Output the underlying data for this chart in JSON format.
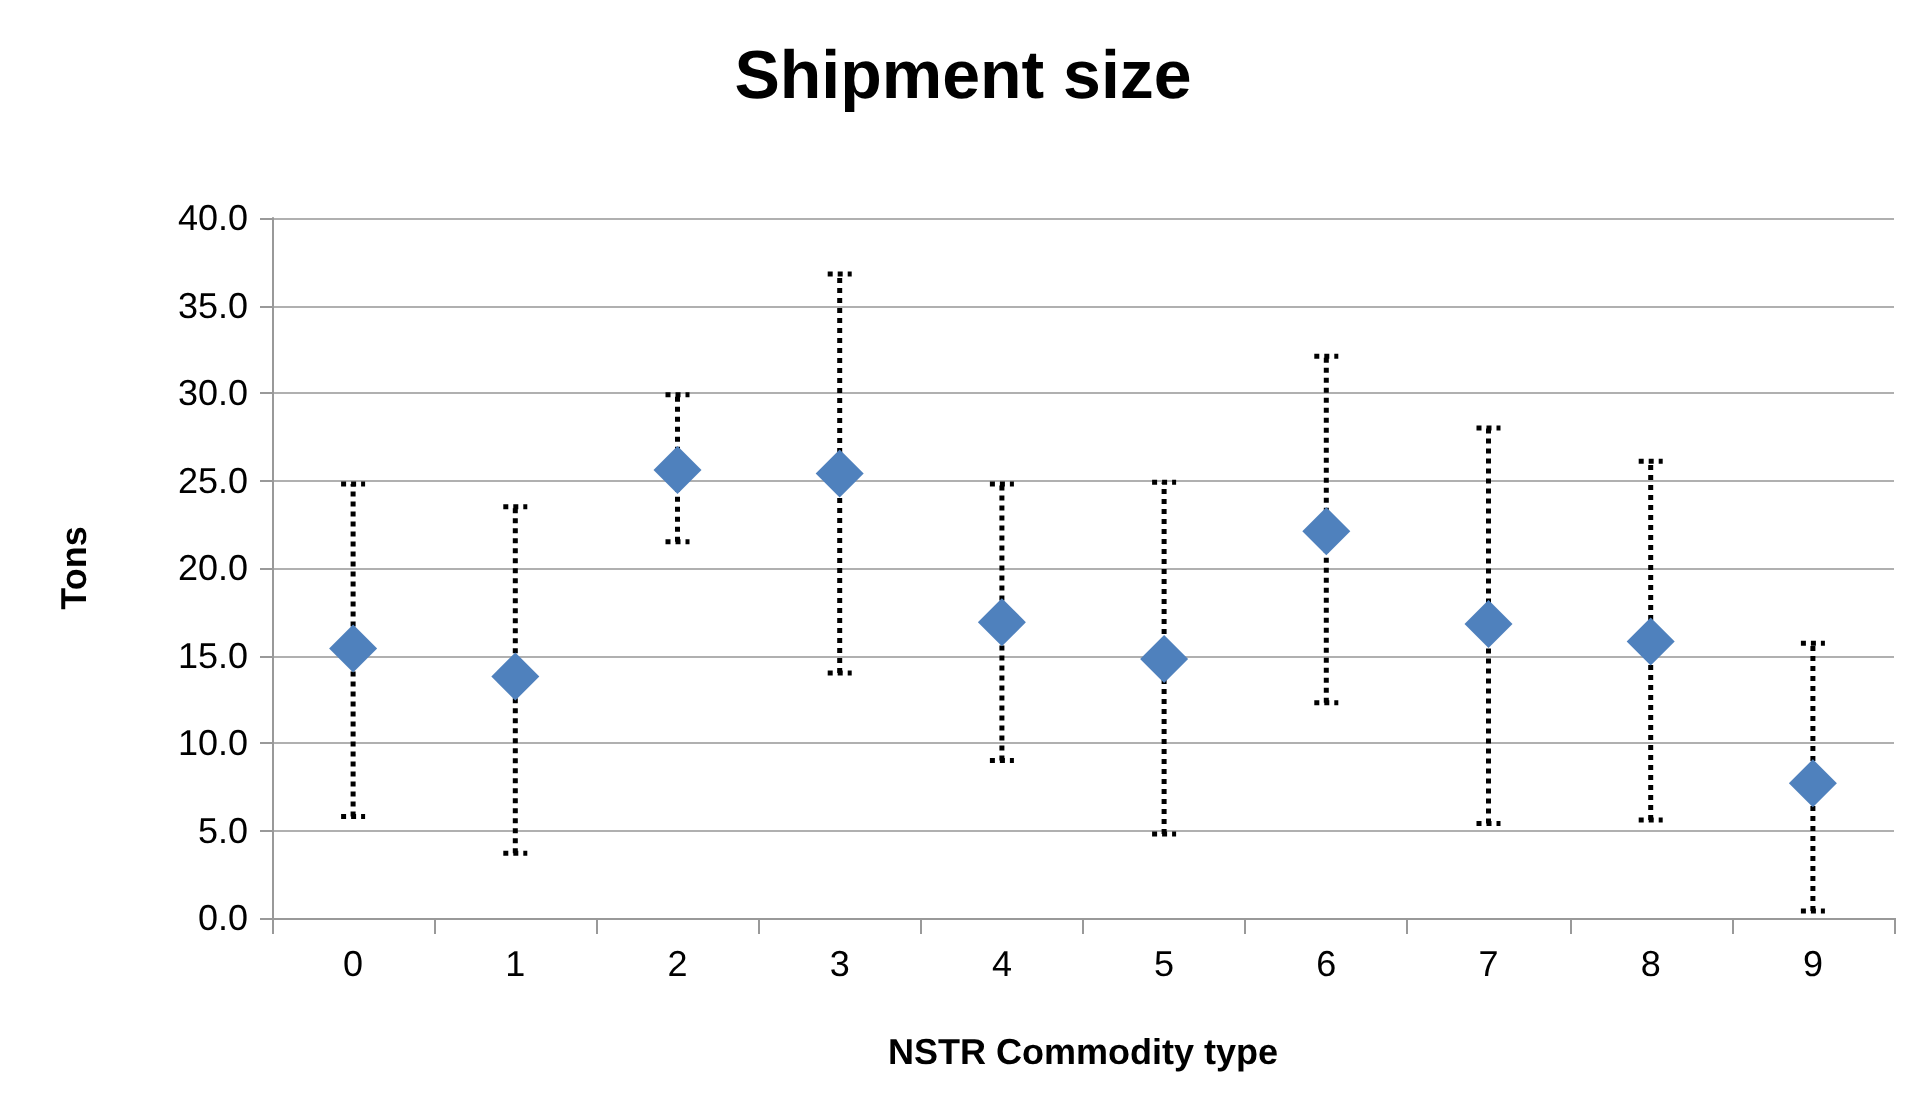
{
  "chart_data": {
    "type": "scatter",
    "title": "Shipment size",
    "xlabel": "NSTR Commodity type",
    "ylabel": "Tons",
    "categories": [
      "0",
      "1",
      "2",
      "3",
      "4",
      "5",
      "6",
      "7",
      "8",
      "9"
    ],
    "values": [
      15.4,
      13.8,
      25.6,
      25.4,
      16.9,
      14.8,
      22.1,
      16.8,
      15.8,
      7.7
    ],
    "errors": [
      [
        5.8,
        24.8
      ],
      [
        3.7,
        23.5
      ],
      [
        21.5,
        29.9
      ],
      [
        14.0,
        36.8
      ],
      [
        9.0,
        24.8
      ],
      [
        4.8,
        24.9
      ],
      [
        12.3,
        32.1
      ],
      [
        5.4,
        28.0
      ],
      [
        5.6,
        26.1
      ],
      [
        0.4,
        15.7
      ]
    ],
    "color": "#4f81bd",
    "marker": "diamond",
    "grid": "y",
    "ylim": [
      0,
      40
    ],
    "yticks": [
      {
        "value": 0,
        "label": "0.0"
      },
      {
        "value": 5,
        "label": "5.0"
      },
      {
        "value": 10,
        "label": "10.0"
      },
      {
        "value": 15,
        "label": "15.0"
      },
      {
        "value": 20,
        "label": "20.0"
      },
      {
        "value": 25,
        "label": "25.0"
      },
      {
        "value": 30,
        "label": "30.0"
      },
      {
        "value": 35,
        "label": "35.0"
      },
      {
        "value": 40,
        "label": "40.0"
      }
    ]
  }
}
